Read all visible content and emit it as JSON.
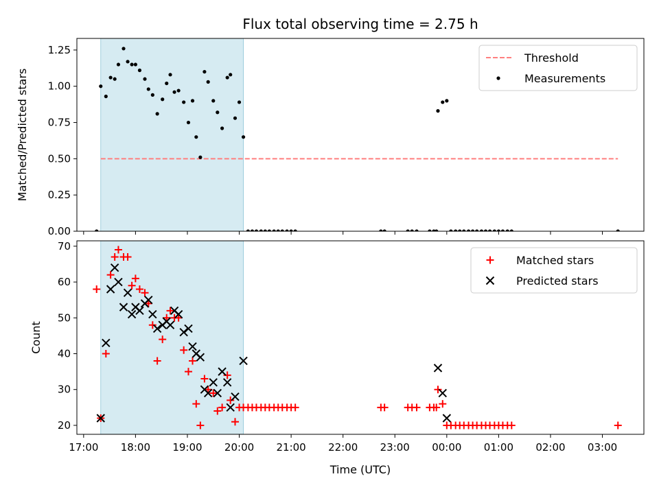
{
  "chart_data": [
    {
      "type": "scatter",
      "title": "Flux total observing time = 2.75 h",
      "xlabel": "",
      "ylabel": "Matched/Predicted stars",
      "xlim": [
        16.87,
        27.8
      ],
      "ylim": [
        0,
        1.33
      ],
      "yticks": [
        0,
        0.25,
        0.5,
        0.75,
        1.0,
        1.25
      ],
      "ytick_labels": [
        "0.00",
        "0.25",
        "0.50",
        "0.75",
        "1.00",
        "1.25"
      ],
      "shaded_span": [
        17.33,
        20.08
      ],
      "legend_position": "upper-right",
      "series": [
        {
          "name": "Threshold",
          "kind": "line",
          "style": "dashed",
          "color": "#ff7f7f",
          "x": [
            17.33,
            27.3
          ],
          "y": [
            0.5,
            0.5
          ]
        },
        {
          "name": "Measurements",
          "kind": "points",
          "marker": "dot",
          "color": "#000000",
          "x": [
            17.25,
            17.33,
            17.43,
            17.52,
            17.6,
            17.67,
            17.77,
            17.85,
            17.93,
            18.0,
            18.08,
            18.18,
            18.25,
            18.33,
            18.42,
            18.52,
            18.6,
            18.67,
            18.75,
            18.83,
            18.93,
            19.02,
            19.1,
            19.17,
            19.25,
            19.33,
            19.4,
            19.5,
            19.58,
            19.67,
            19.77,
            19.83,
            19.92,
            20.0,
            20.08,
            20.17,
            20.25,
            20.33,
            20.42,
            20.5,
            20.58,
            20.67,
            20.75,
            20.83,
            20.92,
            21.0,
            21.08,
            22.73,
            22.8,
            23.25,
            23.33,
            23.42,
            23.67,
            23.75,
            23.8,
            23.83,
            23.92,
            24.0,
            24.08,
            24.17,
            24.25,
            24.33,
            24.42,
            24.5,
            24.58,
            24.67,
            24.75,
            24.83,
            24.92,
            25.0,
            25.08,
            25.17,
            25.25,
            27.3
          ],
          "y": [
            0,
            1.0,
            0.93,
            1.06,
            1.05,
            1.15,
            1.26,
            1.17,
            1.15,
            1.15,
            1.11,
            1.05,
            0.98,
            0.94,
            0.81,
            0.91,
            1.02,
            1.08,
            0.96,
            0.97,
            0.89,
            0.75,
            0.9,
            0.65,
            0.51,
            1.1,
            1.03,
            0.9,
            0.82,
            0.71,
            1.06,
            1.08,
            0.78,
            0.89,
            0.65,
            0,
            0,
            0,
            0,
            0,
            0,
            0,
            0,
            0,
            0,
            0,
            0,
            0,
            0,
            0,
            0,
            0,
            0,
            0,
            0,
            0.83,
            0.89,
            0.9,
            0,
            0,
            0,
            0,
            0,
            0,
            0,
            0,
            0,
            0,
            0,
            0,
            0,
            0,
            0,
            0
          ]
        }
      ]
    },
    {
      "type": "scatter",
      "title": "",
      "xlabel": "Time (UTC)",
      "ylabel": "Count",
      "xlim": [
        16.87,
        27.8
      ],
      "ylim": [
        17.5,
        71.5
      ],
      "yticks": [
        20,
        30,
        40,
        50,
        60,
        70
      ],
      "ytick_labels": [
        "20",
        "30",
        "40",
        "50",
        "60",
        "70"
      ],
      "xticks": [
        17,
        18,
        19,
        20,
        21,
        22,
        23,
        24,
        25,
        26,
        27
      ],
      "xtick_labels": [
        "17:00",
        "18:00",
        "19:00",
        "20:00",
        "21:00",
        "22:00",
        "23:00",
        "00:00",
        "01:00",
        "02:00",
        "03:00"
      ],
      "shaded_span": [
        17.33,
        20.08
      ],
      "legend_position": "upper-right",
      "series": [
        {
          "name": "Matched stars",
          "kind": "points",
          "marker": "plus",
          "color": "#ff0000",
          "x": [
            17.25,
            17.33,
            17.43,
            17.52,
            17.6,
            17.67,
            17.77,
            17.85,
            17.93,
            18.0,
            18.08,
            18.18,
            18.25,
            18.33,
            18.42,
            18.52,
            18.6,
            18.67,
            18.75,
            18.83,
            18.93,
            19.02,
            19.1,
            19.17,
            19.25,
            19.33,
            19.4,
            19.5,
            19.58,
            19.67,
            19.77,
            19.83,
            19.92,
            20.0,
            20.08,
            20.17,
            20.25,
            20.33,
            20.42,
            20.5,
            20.58,
            20.67,
            20.75,
            20.83,
            20.92,
            21.0,
            21.08,
            22.73,
            22.8,
            23.25,
            23.33,
            23.42,
            23.67,
            23.75,
            23.8,
            23.83,
            23.92,
            24.0,
            24.08,
            24.17,
            24.25,
            24.33,
            24.42,
            24.5,
            24.58,
            24.67,
            24.75,
            24.83,
            24.92,
            25.0,
            25.08,
            25.17,
            25.25,
            27.3
          ],
          "y": [
            58,
            22,
            40,
            62,
            67,
            69,
            67,
            67,
            59,
            61,
            58,
            57,
            54,
            48,
            38,
            44,
            50,
            52,
            50,
            50,
            41,
            35,
            38,
            26,
            20,
            33,
            30,
            29,
            24,
            25,
            34,
            27,
            21,
            25,
            25,
            25,
            25,
            25,
            25,
            25,
            25,
            25,
            25,
            25,
            25,
            25,
            25,
            25,
            25,
            25,
            25,
            25,
            25,
            25,
            25,
            30,
            26,
            20,
            20,
            20,
            20,
            20,
            20,
            20,
            20,
            20,
            20,
            20,
            20,
            20,
            20,
            20,
            20,
            20
          ]
        },
        {
          "name": "Predicted stars",
          "kind": "points",
          "marker": "x",
          "color": "#000000",
          "x": [
            17.33,
            17.43,
            17.52,
            17.6,
            17.67,
            17.77,
            17.85,
            17.93,
            18.0,
            18.08,
            18.18,
            18.25,
            18.33,
            18.42,
            18.52,
            18.6,
            18.67,
            18.75,
            18.83,
            18.93,
            19.02,
            19.1,
            19.17,
            19.25,
            19.33,
            19.4,
            19.5,
            19.58,
            19.67,
            19.77,
            19.83,
            19.92,
            20.08,
            23.83,
            23.92,
            24.0
          ],
          "y": [
            22,
            43,
            58,
            64,
            60,
            53,
            57,
            51,
            53,
            52,
            54,
            55,
            51,
            47,
            48,
            49,
            48,
            52,
            51,
            46,
            47,
            42,
            40,
            39,
            30,
            29,
            32,
            29,
            35,
            32,
            25,
            28,
            38,
            36,
            29,
            22
          ]
        }
      ]
    }
  ]
}
